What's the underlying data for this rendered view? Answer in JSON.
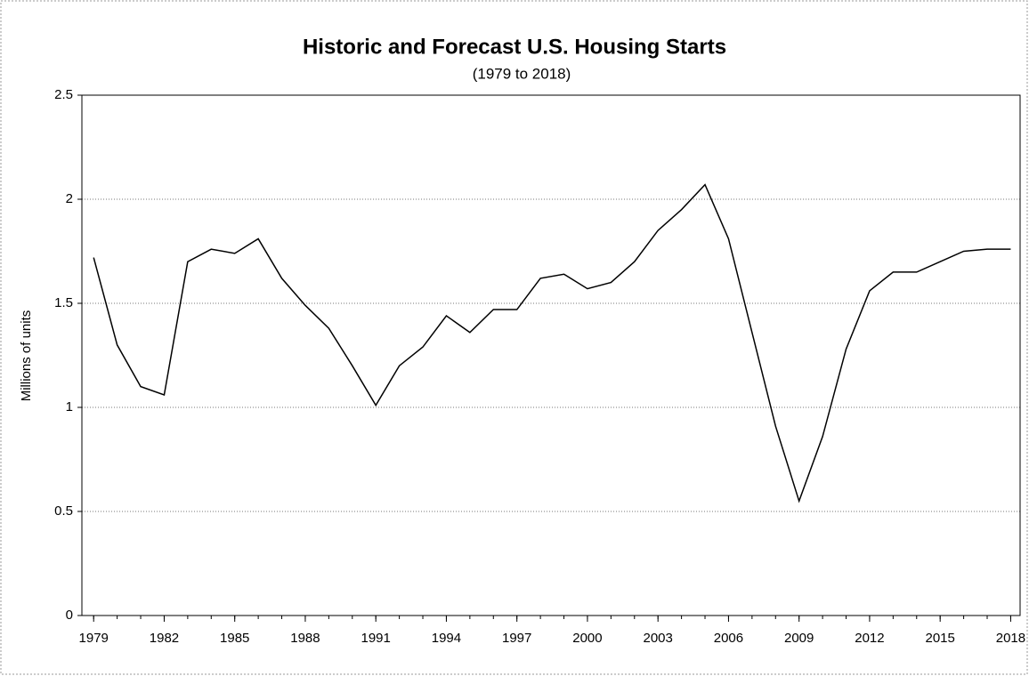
{
  "chart_data": {
    "type": "line",
    "title": "Historic and Forecast U.S. Housing Starts",
    "subtitle": "(1979 to 2018)",
    "y_label": "Millions of units",
    "x": [
      1979,
      1980,
      1981,
      1982,
      1983,
      1984,
      1985,
      1986,
      1987,
      1988,
      1989,
      1990,
      1991,
      1992,
      1993,
      1994,
      1995,
      1996,
      1997,
      1998,
      1999,
      2000,
      2001,
      2002,
      2003,
      2004,
      2005,
      2006,
      2007,
      2008,
      2009,
      2010,
      2011,
      2012,
      2013,
      2014,
      2015,
      2016,
      2017,
      2018
    ],
    "series": [
      {
        "color": "#000000",
        "values": [
          1.72,
          1.3,
          1.1,
          1.06,
          1.7,
          1.76,
          1.74,
          1.81,
          1.62,
          1.49,
          1.38,
          1.2,
          1.01,
          1.2,
          1.29,
          1.44,
          1.36,
          1.47,
          1.47,
          1.62,
          1.64,
          1.57,
          1.6,
          1.7,
          1.85,
          1.95,
          2.07,
          1.81,
          1.36,
          0.91,
          0.55,
          0.86,
          1.28,
          1.56,
          1.65,
          1.65,
          1.7,
          1.75,
          1.76,
          1.76
        ]
      }
    ],
    "xlim": [
      1978.5,
      2018.4
    ],
    "xticks": [
      1979,
      1982,
      1985,
      1988,
      1991,
      1994,
      1997,
      2000,
      2003,
      2006,
      2009,
      2012,
      2015,
      2018
    ],
    "ylim": [
      0,
      2.5
    ],
    "yticks": [
      0,
      0.5,
      1,
      1.5,
      2,
      2.5
    ],
    "grid": true
  }
}
